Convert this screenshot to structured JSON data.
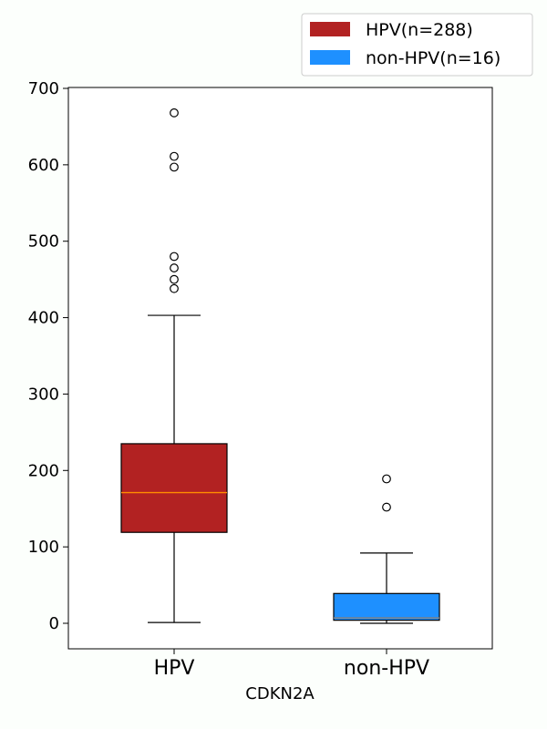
{
  "chart_data": {
    "type": "box",
    "xlabel": "CDKN2A",
    "ylabel": "",
    "ylim": [
      -33,
      700
    ],
    "yticks": [
      0,
      100,
      200,
      300,
      400,
      500,
      600,
      700
    ],
    "ytick_labels": [
      "0",
      "100",
      "200",
      "300",
      "400",
      "500",
      "600",
      "700"
    ],
    "grid": false,
    "legend_position": "top-right",
    "categories": [
      "HPV",
      "non-HPV"
    ],
    "series": [
      {
        "name": "HPV(n=288)",
        "color": "#b22222",
        "median_color": "#ff8c00",
        "whisker_low": 1,
        "q1": 119,
        "median": 171,
        "q3": 235,
        "whisker_high": 403,
        "outliers": [
          438,
          450,
          465,
          480,
          597,
          611,
          668
        ]
      },
      {
        "name": "non-HPV(n=16)",
        "color": "#1e90ff",
        "median_color": "#808080",
        "whisker_low": 0,
        "q1": 4,
        "median": 7,
        "q3": 39,
        "whisker_high": 92,
        "outliers": [
          152,
          189
        ]
      }
    ]
  }
}
